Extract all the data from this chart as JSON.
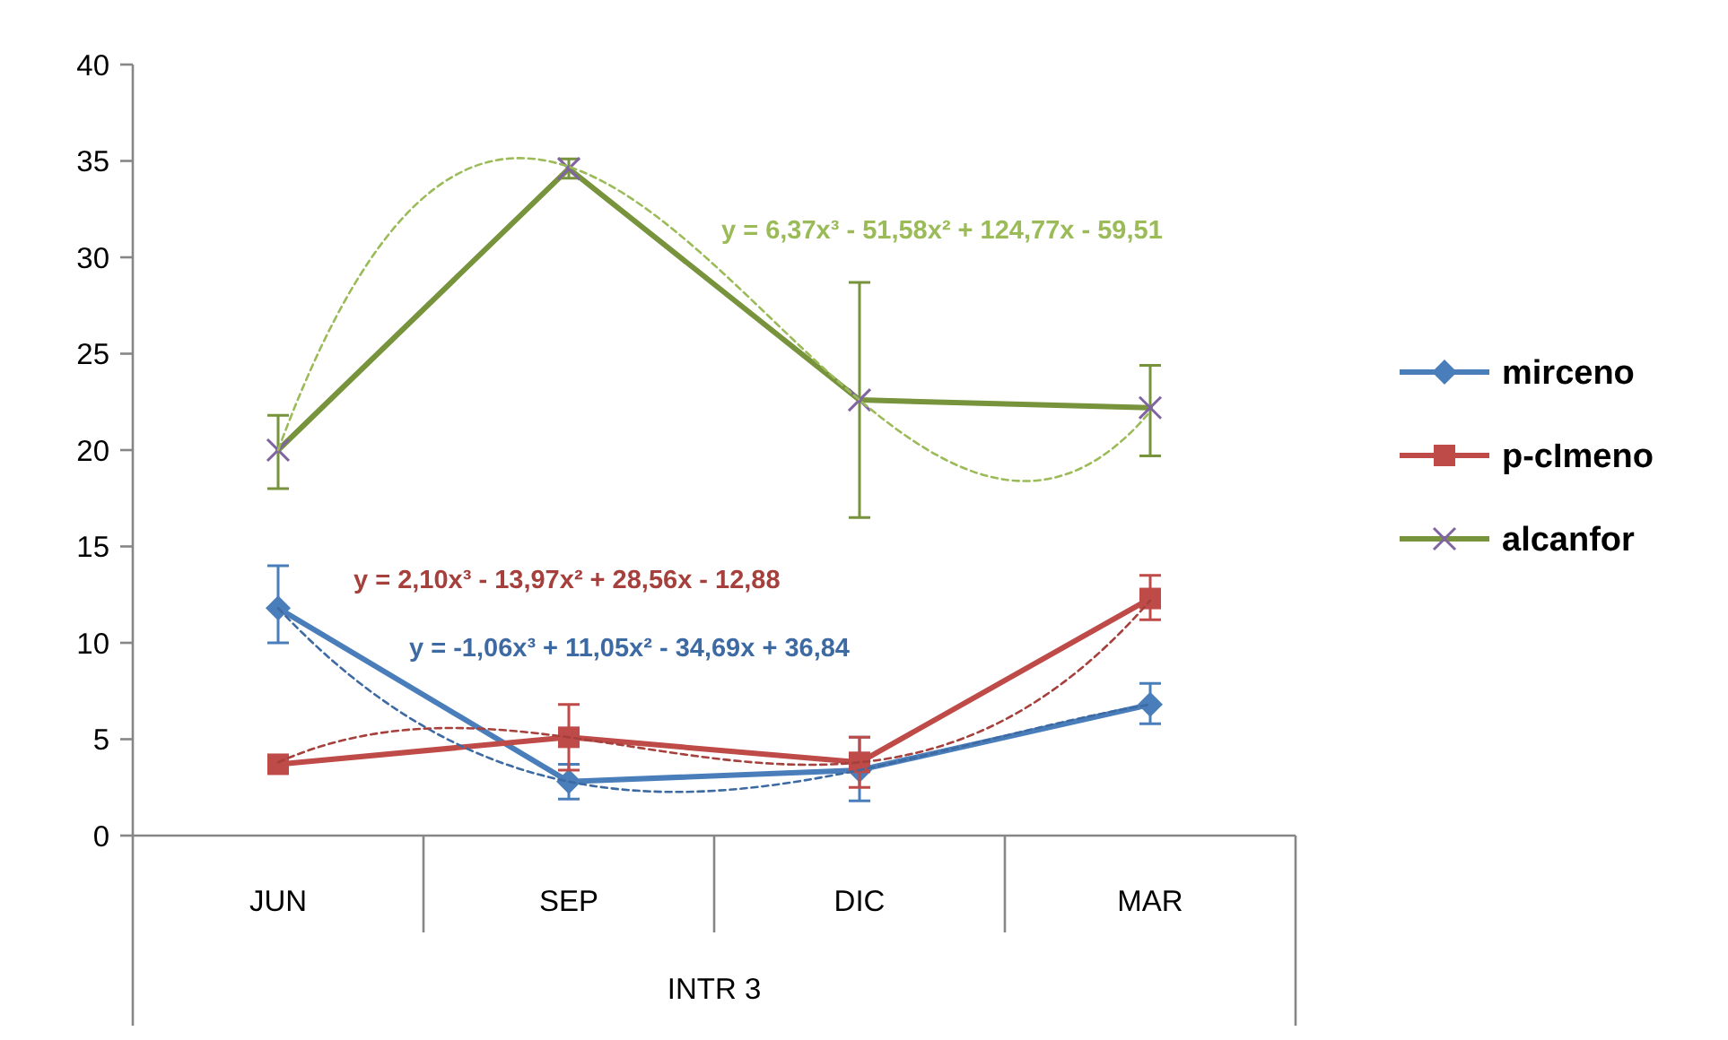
{
  "chart_data": {
    "type": "line",
    "xlabel": "INTR 3",
    "categories": [
      "JUN",
      "SEP",
      "DIC",
      "MAR"
    ],
    "ylim": [
      0,
      40
    ],
    "yticks": [
      0,
      5,
      10,
      15,
      20,
      25,
      30,
      35,
      40
    ],
    "legend": "right",
    "line_style": "solid",
    "series": [
      {
        "name": "mirceno",
        "color": "#4a7ebb",
        "marker": "diamond",
        "values": [
          11.8,
          2.8,
          3.4,
          6.8
        ],
        "errors": [
          [
            10.0,
            14.0
          ],
          [
            1.9,
            3.7
          ],
          [
            1.8,
            5.1
          ],
          [
            5.8,
            7.9
          ]
        ]
      },
      {
        "name": "p-cImeno",
        "color": "#be4b48",
        "marker": "square",
        "values": [
          3.7,
          5.1,
          3.8,
          12.3
        ],
        "errors": [
          null,
          [
            3.4,
            6.8
          ],
          [
            2.5,
            5.1
          ],
          [
            11.2,
            13.5
          ]
        ]
      },
      {
        "name": "alcanfor",
        "color": "#77933c",
        "marker": "cross",
        "colors": [
          "#8064a2",
          "#8064a2",
          "#8064a2",
          "#8064a2"
        ],
        "values": [
          20.0,
          34.6,
          22.6,
          22.2
        ],
        "errors": [
          [
            18.0,
            21.8
          ],
          [
            34.1,
            35.1
          ],
          [
            16.5,
            28.7
          ],
          [
            19.7,
            24.4
          ]
        ]
      },
      {
        "name": "y = -1,06x³ + 11,05x² - 34,69x + 36,84",
        "type": "line",
        "line_style": "dashed",
        "marker": "none",
        "color": "#3d6aa3",
        "values": [
          11.8,
          2.8,
          3.4,
          6.8
        ]
      },
      {
        "name": "y = 2,10x³ - 13,97x² + 28,56x - 12,88",
        "type": "line",
        "line_style": "dashed",
        "marker": "none",
        "color": "#a5403d",
        "values": [
          3.8,
          5.1,
          3.8,
          12.2
        ]
      },
      {
        "name": "y = 6,37x³ - 51,58x² + 124,77x - 59,51",
        "type": "line",
        "line_style": "dashed",
        "marker": "none",
        "color": "#9bbb59",
        "values": [
          20.0,
          34.7,
          22.6,
          22.0
        ]
      }
    ]
  }
}
